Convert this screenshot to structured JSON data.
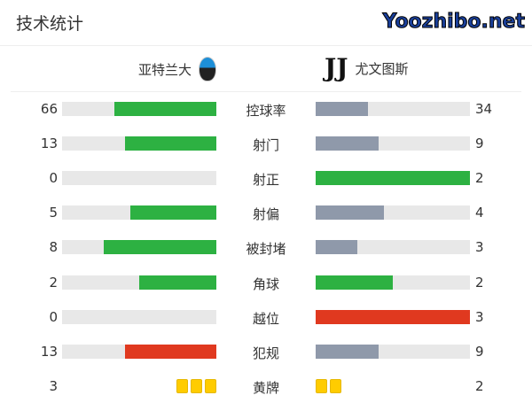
{
  "title": "技术统计",
  "home": {
    "name": "亚特兰大",
    "logo": "atalanta-logo"
  },
  "away": {
    "name": "尤文图斯",
    "logo": "juventus-logo"
  },
  "colors": {
    "green": "#2db142",
    "gray": "#8f99aa",
    "red": "#e0391f",
    "track": "#e8e8e8",
    "yellow": "#ffcc00"
  },
  "stats": [
    {
      "label": "控球率",
      "home": "66",
      "away": "34",
      "home_color": "green",
      "away_color": "gray"
    },
    {
      "label": "射门",
      "home": "13",
      "away": "9",
      "home_color": "green",
      "away_color": "gray"
    },
    {
      "label": "射正",
      "home": "0",
      "away": "2",
      "home_color": "gray",
      "away_color": "green"
    },
    {
      "label": "射偏",
      "home": "5",
      "away": "4",
      "home_color": "green",
      "away_color": "gray"
    },
    {
      "label": "被封堵",
      "home": "8",
      "away": "3",
      "home_color": "green",
      "away_color": "gray"
    },
    {
      "label": "角球",
      "home": "2",
      "away": "2",
      "home_color": "green",
      "away_color": "green"
    },
    {
      "label": "越位",
      "home": "0",
      "away": "3",
      "home_color": "gray",
      "away_color": "red"
    },
    {
      "label": "犯规",
      "home": "13",
      "away": "9",
      "home_color": "red",
      "away_color": "gray"
    }
  ],
  "yellow_cards": {
    "label": "黄牌",
    "home": "3",
    "away": "2"
  },
  "watermark": "Yoozhibo.net"
}
